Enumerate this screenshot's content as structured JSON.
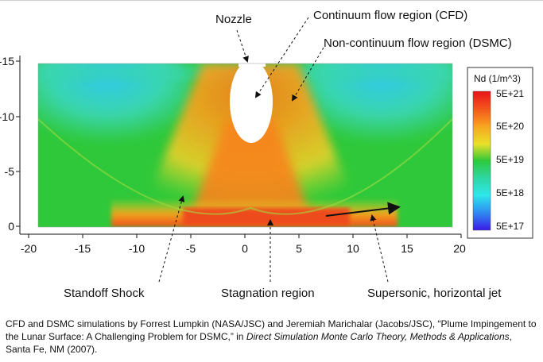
{
  "annotations": {
    "nozzle": "Nozzle",
    "continuum": "Continuum flow region (CFD)",
    "noncontinuum": "Non-continuum flow region (DSMC)",
    "standoff": "Standoff Shock",
    "stagnation": "Stagnation region",
    "jet": "Supersonic, horizontal jet"
  },
  "colorbar": {
    "title": "Nd (1/m^3)",
    "ticks": [
      "5E+21",
      "5E+20",
      "5E+19",
      "5E+18",
      "5E+17"
    ],
    "scale": "log"
  },
  "axes": {
    "x_ticks": [
      "-20",
      "-15",
      "-10",
      "-5",
      "0",
      "5",
      "10",
      "15",
      "20"
    ],
    "y_ticks": [
      "-15",
      "-10",
      "-5",
      "0"
    ]
  },
  "caption": {
    "part1": "CFD and DSMC simulations by Forrest Lumpkin (NASA/JSC) and Jeremiah Marichalar (Jacobs/JSC), “Plume Impingement to the Lunar Surface: A Challenging Problem for DSMC,” in ",
    "italic": "Direct Simulation Monte Carlo Theory, Methods & Applications",
    "part2": ", Santa Fe, NM (2007)."
  },
  "colors": {
    "background_field": "#2fc83a",
    "nozzle": "#ffffff",
    "stagnation": "#f0501e"
  }
}
